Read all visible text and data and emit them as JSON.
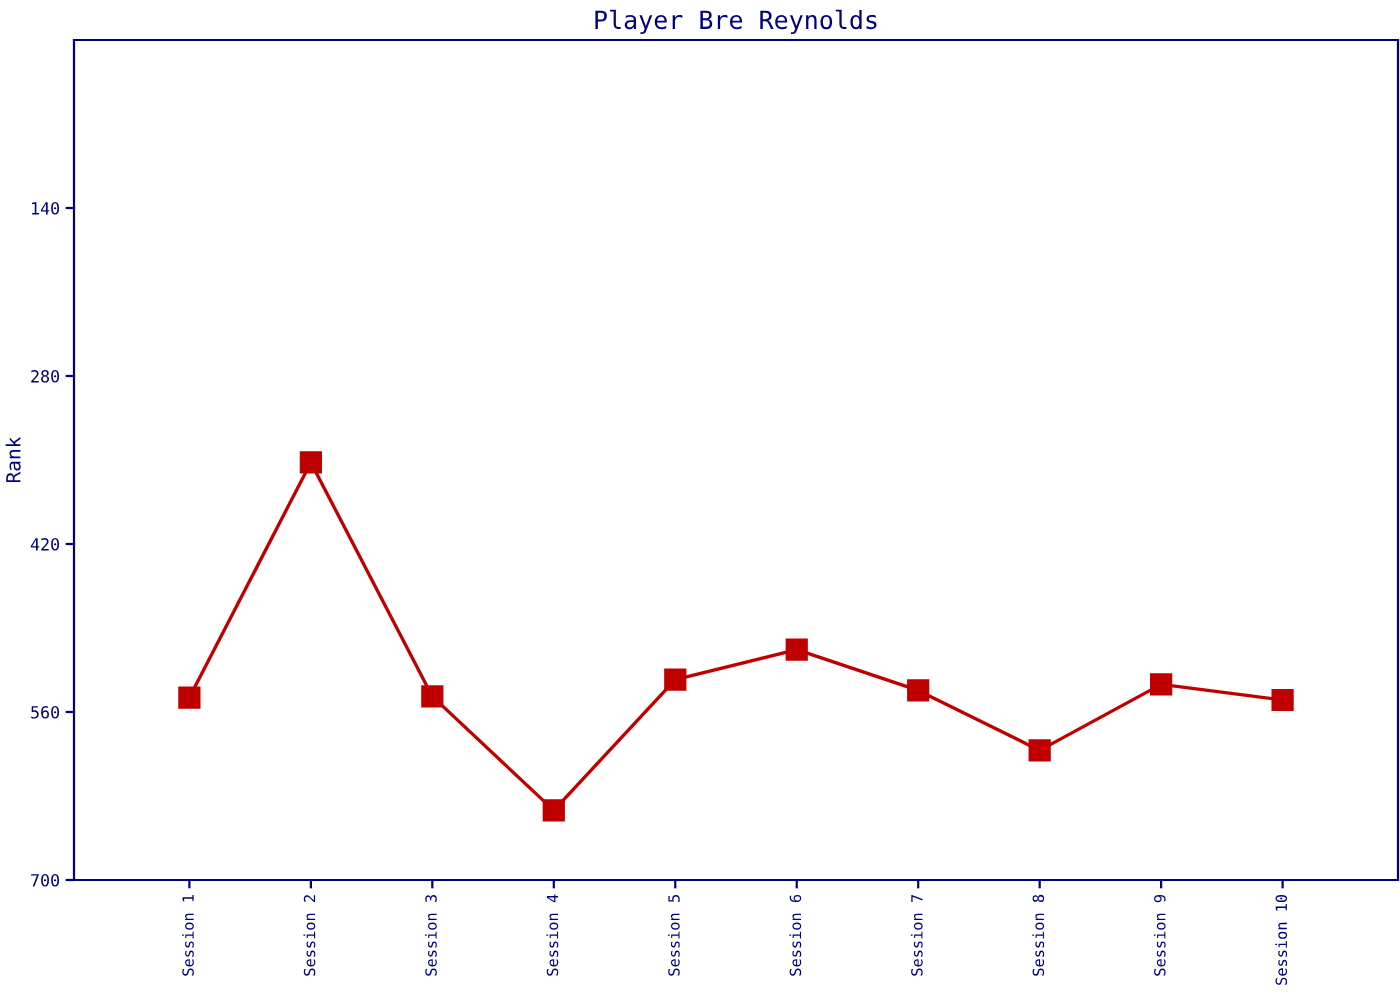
{
  "chart_data": {
    "type": "line",
    "title": "Player Bre Reynolds",
    "ylabel": "Rank",
    "categories": [
      "Session 1",
      "Session 2",
      "Session 3",
      "Session 4",
      "Session 5",
      "Session 6",
      "Session 7",
      "Session 8",
      "Session 9",
      "Session 10"
    ],
    "series": [
      {
        "color": "#c00000",
        "values": [
          548,
          352,
          547,
          642,
          533,
          508,
          542,
          592,
          537,
          550
        ]
      }
    ],
    "ylim": [
      700,
      0
    ],
    "yticks": [
      140,
      280,
      420,
      560,
      700
    ],
    "marker": "square",
    "line_style": "solid",
    "grid": false,
    "legend": false
  }
}
